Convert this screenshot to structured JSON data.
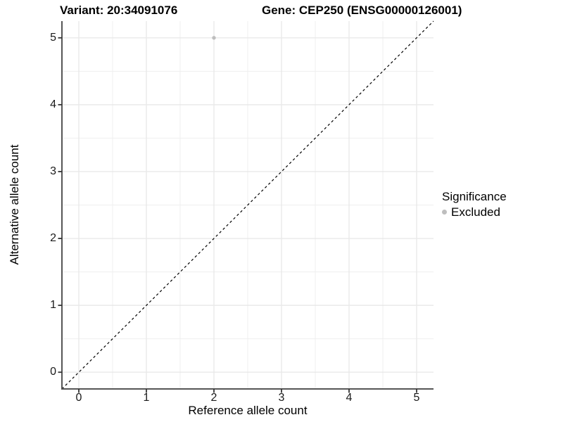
{
  "chart_data": {
    "type": "scatter",
    "titles": {
      "left": "Variant: 20:34091076",
      "right": "Gene: CEP250 (ENSG00000126001)"
    },
    "xlabel": "Reference allele count",
    "ylabel": "Alternative allele count",
    "xlim": [
      -0.25,
      5.25
    ],
    "ylim": [
      -0.25,
      5.25
    ],
    "x_ticks": [
      0,
      1,
      2,
      3,
      4,
      5
    ],
    "y_ticks": [
      0,
      1,
      2,
      3,
      4,
      5
    ],
    "x_minor": [
      0.5,
      1.5,
      2.5,
      3.5,
      4.5
    ],
    "y_minor": [
      0.5,
      1.5,
      2.5,
      3.5,
      4.5
    ],
    "grid": "on",
    "points": [
      {
        "x": 2,
        "y": 5,
        "series": "Excluded"
      }
    ],
    "reference_line": {
      "type": "identity",
      "style": "dashed"
    },
    "legend": {
      "title": "Significance",
      "position": "right",
      "items": [
        {
          "label": "Excluded",
          "color": "#bebebe",
          "marker": "circle"
        }
      ]
    },
    "colors": {
      "point": "#bebebe",
      "grid_major": "#e9e9e9",
      "grid_minor": "#efefef",
      "axis_line": "#565656",
      "tick": "#333333",
      "reference_line": "#000000",
      "text": "#000000",
      "background": "#ffffff"
    }
  }
}
